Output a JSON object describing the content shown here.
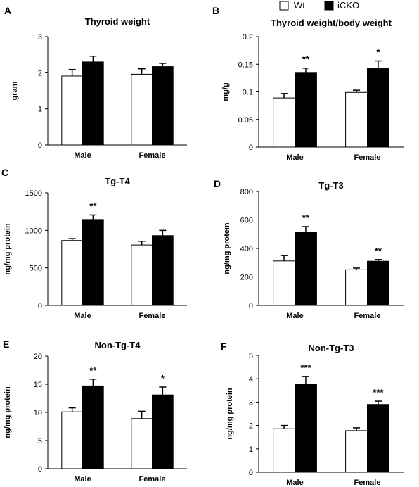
{
  "legend": {
    "placement": "top-right",
    "entries": [
      {
        "label": "Wt",
        "fill": "#ffffff"
      },
      {
        "label": "iCKO",
        "fill": "#000000"
      }
    ]
  },
  "colors": {
    "wt": "#ffffff",
    "icko": "#000000",
    "axis": "#000000"
  },
  "chart_data": [
    {
      "panel_label": "A",
      "type": "bar",
      "title": "Thyroid weight",
      "ylabel": "gram",
      "xlabel": "",
      "categories": [
        "Male",
        "Female"
      ],
      "ylim": [
        0,
        3
      ],
      "yticks": [
        "0",
        "1",
        "2",
        "3"
      ],
      "grid": false,
      "series": [
        {
          "name": "Wt",
          "values": [
            1.91,
            1.96
          ],
          "errors": [
            0.18,
            0.15
          ]
        },
        {
          "name": "iCKO",
          "values": [
            2.3,
            2.17
          ],
          "errors": [
            0.16,
            0.09
          ]
        }
      ],
      "annotations": [
        {
          "category": 0,
          "series": 1,
          "text": ""
        },
        {
          "category": 1,
          "series": 1,
          "text": ""
        }
      ]
    },
    {
      "panel_label": "B",
      "type": "bar",
      "title": "Thyroid weight/body weight",
      "ylabel": "mg/g",
      "xlabel": "",
      "categories": [
        "Male",
        "Female"
      ],
      "ylim": [
        0,
        0.2
      ],
      "yticks": [
        "0",
        "0.05",
        "0.1",
        "0.15",
        "0.2"
      ],
      "grid": false,
      "series": [
        {
          "name": "Wt",
          "values": [
            0.089,
            0.099
          ],
          "errors": [
            0.008,
            0.004
          ]
        },
        {
          "name": "iCKO",
          "values": [
            0.134,
            0.142
          ],
          "errors": [
            0.009,
            0.014
          ]
        }
      ],
      "annotations": [
        {
          "category": 0,
          "series": 1,
          "text": "**"
        },
        {
          "category": 1,
          "series": 1,
          "text": "*"
        }
      ]
    },
    {
      "panel_label": "C",
      "type": "bar",
      "title": "Tg-T4",
      "ylabel": "ng/mg protein",
      "xlabel": "",
      "categories": [
        "Male",
        "Female"
      ],
      "ylim": [
        0,
        1500
      ],
      "yticks": [
        "0",
        "500",
        "1000",
        "1500"
      ],
      "grid": false,
      "series": [
        {
          "name": "Wt",
          "values": [
            865,
            805
          ],
          "errors": [
            25,
            50
          ]
        },
        {
          "name": "iCKO",
          "values": [
            1145,
            930
          ],
          "errors": [
            60,
            70
          ]
        }
      ],
      "annotations": [
        {
          "category": 0,
          "series": 1,
          "text": "**"
        },
        {
          "category": 1,
          "series": 1,
          "text": ""
        }
      ]
    },
    {
      "panel_label": "D",
      "type": "bar",
      "title": "Tg-T3",
      "ylabel": "ng/mg protein",
      "xlabel": "",
      "categories": [
        "Male",
        "Female"
      ],
      "ylim": [
        0,
        800
      ],
      "yticks": [
        "0",
        "200",
        "400",
        "600",
        "800"
      ],
      "grid": false,
      "series": [
        {
          "name": "Wt",
          "values": [
            312,
            250
          ],
          "errors": [
            38,
            12
          ]
        },
        {
          "name": "iCKO",
          "values": [
            515,
            310
          ],
          "errors": [
            38,
            12
          ]
        }
      ],
      "annotations": [
        {
          "category": 0,
          "series": 1,
          "text": "**"
        },
        {
          "category": 1,
          "series": 1,
          "text": "**"
        }
      ]
    },
    {
      "panel_label": "E",
      "type": "bar",
      "title": "Non-Tg-T4",
      "ylabel": "ng/mg protein",
      "xlabel": "",
      "categories": [
        "Male",
        "Female"
      ],
      "ylim": [
        0,
        20
      ],
      "yticks": [
        "0",
        "5",
        "10",
        "15",
        "20"
      ],
      "grid": false,
      "series": [
        {
          "name": "Wt",
          "values": [
            10.1,
            8.9
          ],
          "errors": [
            0.7,
            1.3
          ]
        },
        {
          "name": "iCKO",
          "values": [
            14.7,
            13.1
          ],
          "errors": [
            1.2,
            1.4
          ]
        }
      ],
      "annotations": [
        {
          "category": 0,
          "series": 1,
          "text": "**"
        },
        {
          "category": 1,
          "series": 1,
          "text": "*"
        }
      ]
    },
    {
      "panel_label": "F",
      "type": "bar",
      "title": "Non-Tg-T3",
      "ylabel": "ng/mg protein",
      "xlabel": "",
      "categories": [
        "Male",
        "Female"
      ],
      "ylim": [
        0,
        5
      ],
      "yticks": [
        "0",
        "1",
        "2",
        "3",
        "4",
        "5"
      ],
      "grid": false,
      "series": [
        {
          "name": "Wt",
          "values": [
            1.86,
            1.78
          ],
          "errors": [
            0.14,
            0.12
          ]
        },
        {
          "name": "iCKO",
          "values": [
            3.75,
            2.9
          ],
          "errors": [
            0.35,
            0.14
          ]
        }
      ],
      "annotations": [
        {
          "category": 0,
          "series": 1,
          "text": "***"
        },
        {
          "category": 1,
          "series": 1,
          "text": "***"
        }
      ]
    }
  ]
}
